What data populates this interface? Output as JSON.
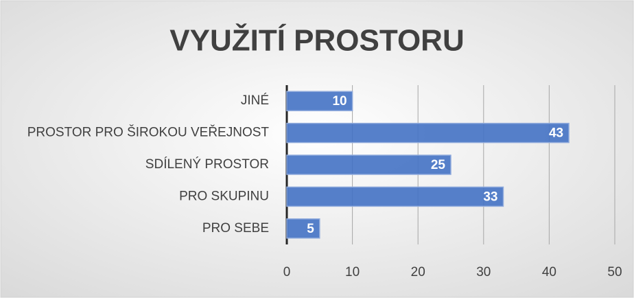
{
  "chart_data": {
    "type": "barh",
    "title": "VYUŽITÍ PROSTORU",
    "categories": [
      "JINÉ",
      "PROSTOR PRO ŠIROKOU VEŘEJNOST",
      "SDÍLENÝ PROSTOR",
      "PRO SKUPINU",
      "PRO SEBE"
    ],
    "values": [
      10,
      43,
      25,
      33,
      5
    ],
    "color": "#4472c4",
    "xlim": [
      0,
      50
    ],
    "xticks": [
      0,
      10,
      20,
      30,
      40,
      50
    ],
    "grid": true
  }
}
